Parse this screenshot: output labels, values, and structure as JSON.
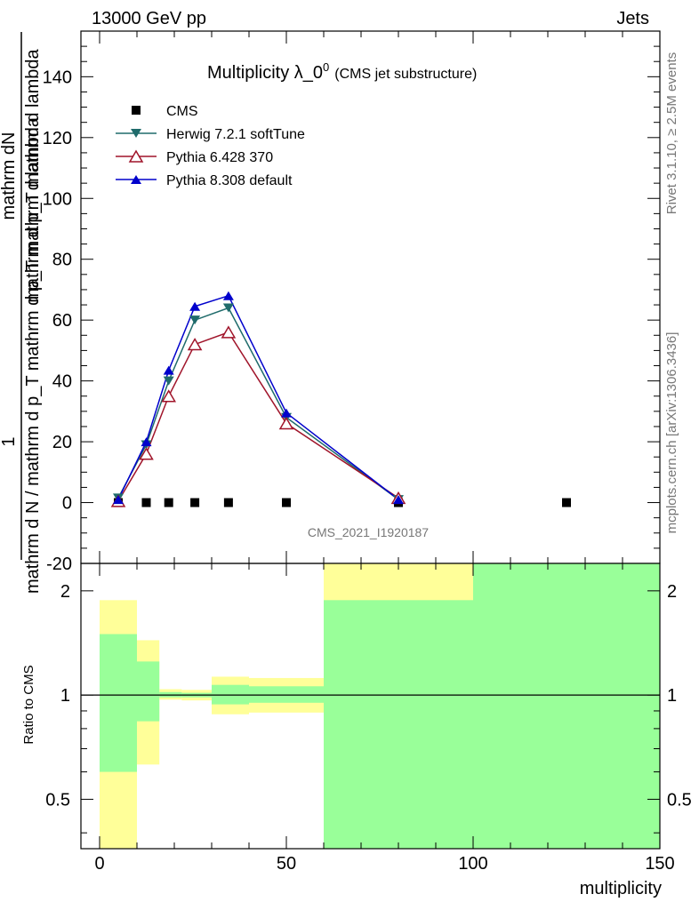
{
  "header": {
    "left": "13000 GeV pp",
    "right": "Jets"
  },
  "side_text": {
    "top": "Rivet 3.1.10, ≥ 2.5M events",
    "bottom": "mcplots.cern.ch [arXiv:1306.3436]"
  },
  "watermark": "CMS_2021_I1920187",
  "chart_data": [
    {
      "type": "line",
      "title": "Multiplicity λ_0",
      "title_superscript": "0",
      "subtitle": "(CMS jet substructure)",
      "ylabel_numerator": "1",
      "ylabel_fraction_top": "mathrm dN",
      "ylabel_fraction_bottom": "mathrm d p_T mathrm d lambda",
      "ylabel_denominator": "mathrm d N / mathrm d p_T mathrm d p_T mathrm d lambda",
      "ylim": [
        -20,
        155
      ],
      "xlim": [
        -5,
        150
      ],
      "yticks": [
        -20,
        0,
        20,
        40,
        60,
        80,
        100,
        120,
        140
      ],
      "grid": false,
      "legend_position": "top-left",
      "series": [
        {
          "name": "CMS",
          "marker": "square",
          "color": "#000000",
          "x": [
            5,
            12.5,
            18.5,
            25.5,
            34.5,
            50,
            80,
            125
          ],
          "y": [
            0,
            0,
            0,
            0,
            0,
            0,
            0,
            0
          ]
        },
        {
          "name": "Herwig 7.2.1 softTune",
          "marker": "triangle-down",
          "color": "#1f6b6b",
          "x": [
            5,
            12.5,
            18.5,
            25.5,
            34.5,
            50,
            80
          ],
          "y": [
            1.5,
            19,
            40,
            60,
            64,
            28,
            1
          ]
        },
        {
          "name": "Pythia 6.428 370",
          "marker": "triangle-up-open",
          "color": "#a0142a",
          "x": [
            5,
            12.5,
            18.5,
            25.5,
            34.5,
            50,
            80
          ],
          "y": [
            0.5,
            16,
            35,
            52,
            56,
            26,
            1.5
          ]
        },
        {
          "name": "Pythia 8.308 default",
          "marker": "triangle-up",
          "color": "#0000cc",
          "x": [
            5,
            12.5,
            18.5,
            25.5,
            34.5,
            50,
            80
          ],
          "y": [
            1,
            20,
            43.5,
            64.5,
            68,
            29.5,
            1
          ]
        }
      ]
    },
    {
      "type": "area",
      "ylabel": "Ratio to CMS",
      "xlabel": "multiplicity",
      "ylim": [
        0.36,
        2.4
      ],
      "xlim": [
        -5,
        150
      ],
      "xticks": [
        0,
        50,
        100,
        150
      ],
      "yticks": [
        0.5,
        1,
        2
      ],
      "yticks_labels": [
        "0.5",
        "1",
        "2"
      ],
      "reference_line": 1,
      "bands": [
        {
          "name": "yellow",
          "color": "#ffff99",
          "bins": [
            {
              "x0": 0,
              "x1": 10,
              "lo": 0.36,
              "hi": 1.88
            },
            {
              "x0": 10,
              "x1": 16,
              "lo": 0.63,
              "hi": 1.44
            },
            {
              "x0": 16,
              "x1": 22,
              "lo": 0.97,
              "hi": 1.04
            },
            {
              "x0": 22,
              "x1": 30,
              "lo": 0.965,
              "hi": 1.035
            },
            {
              "x0": 30,
              "x1": 40,
              "lo": 0.88,
              "hi": 1.13
            },
            {
              "x0": 40,
              "x1": 60,
              "lo": 0.89,
              "hi": 1.12
            },
            {
              "x0": 60,
              "x1": 100,
              "lo": 0.36,
              "hi": 2.4
            },
            {
              "x0": 100,
              "x1": 150,
              "lo": 0.36,
              "hi": 2.4
            }
          ]
        },
        {
          "name": "green",
          "color": "#99ff99",
          "bins": [
            {
              "x0": 0,
              "x1": 10,
              "lo": 0.6,
              "hi": 1.5
            },
            {
              "x0": 10,
              "x1": 16,
              "lo": 0.84,
              "hi": 1.25
            },
            {
              "x0": 16,
              "x1": 22,
              "lo": 0.985,
              "hi": 1.02
            },
            {
              "x0": 22,
              "x1": 30,
              "lo": 0.985,
              "hi": 1.015
            },
            {
              "x0": 30,
              "x1": 40,
              "lo": 0.94,
              "hi": 1.07
            },
            {
              "x0": 40,
              "x1": 60,
              "lo": 0.95,
              "hi": 1.06
            },
            {
              "x0": 60,
              "x1": 100,
              "lo": 0.36,
              "hi": 1.88
            },
            {
              "x0": 100,
              "x1": 150,
              "lo": 0.36,
              "hi": 2.4
            }
          ]
        }
      ]
    }
  ]
}
